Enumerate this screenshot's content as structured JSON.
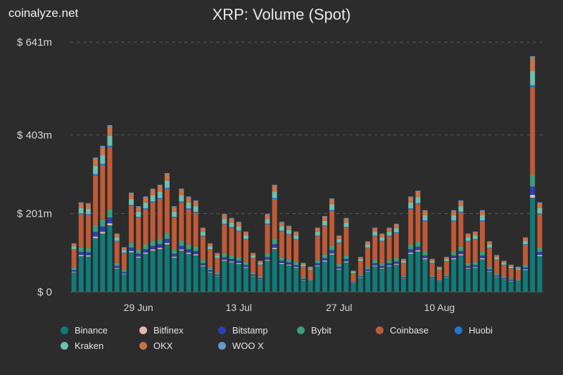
{
  "brand": "coinalyze.net",
  "chart_data": {
    "type": "bar",
    "stacked": true,
    "title": "XRP: Volume (Spot)",
    "y_axis": {
      "min": 0,
      "max": 641,
      "unit": "m",
      "ticks": [
        0,
        201,
        403,
        641
      ],
      "tick_labels": [
        "$ 0",
        "$ 201m",
        "$ 403m",
        "$ 641m"
      ]
    },
    "x_axis": {
      "tick_labels": [
        "29 Jun",
        "13 Jul",
        "27 Jul",
        "10 Aug"
      ],
      "tick_index": [
        9,
        23,
        37,
        51
      ]
    },
    "legend_placement": "bottom",
    "series_totals_approx": [
      125,
      230,
      228,
      345,
      375,
      428,
      150,
      115,
      255,
      220,
      245,
      265,
      275,
      305,
      220,
      265,
      245,
      235,
      165,
      125,
      100,
      200,
      190,
      180,
      155,
      100,
      80,
      200,
      275,
      180,
      170,
      155,
      75,
      65,
      165,
      195,
      240,
      145,
      190,
      55,
      90,
      130,
      165,
      150,
      165,
      175,
      85,
      245,
      260,
      210,
      85,
      65,
      90,
      210,
      235,
      150,
      155,
      210,
      130,
      95,
      80,
      70,
      65,
      140,
      605,
      230
    ],
    "series": [
      {
        "name": "Binance",
        "color": "#0f7b7b",
        "share": 0.4
      },
      {
        "name": "Bitfinex",
        "color": "#e6b8ae",
        "share": 0.012
      },
      {
        "name": "Bitstamp",
        "color": "#2d3fb3",
        "share": 0.035
      },
      {
        "name": "Bybit",
        "color": "#3d9e7c",
        "share": 0.05
      },
      {
        "name": "Coinbase",
        "color": "#c05a36",
        "share": 0.37
      },
      {
        "name": "Huobi",
        "color": "#1e78d2",
        "share": 0.01
      },
      {
        "name": "Kraken",
        "color": "#6fbfb0",
        "share": 0.06
      },
      {
        "name": "OKX",
        "color": "#c8724a",
        "share": 0.055
      },
      {
        "name": "WOO X",
        "color": "#6699cc",
        "share": 0.008
      }
    ]
  }
}
